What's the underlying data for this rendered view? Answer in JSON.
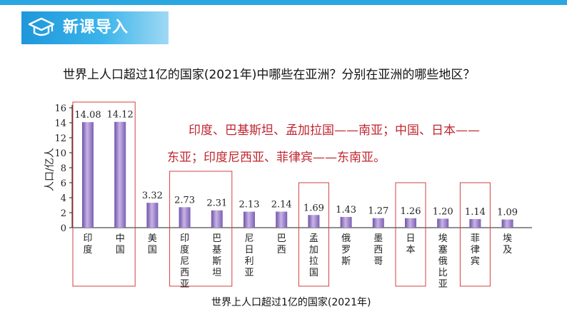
{
  "header": {
    "title": "新课导入",
    "icon": "graduation-cap-icon"
  },
  "question": "世界上人口超过1亿的国家(2021年)中哪些在亚洲？分别在亚洲的哪些地区？",
  "answer": {
    "line1": "印度、巴基斯坦、孟加拉国——南亚；中国、日本——",
    "line2": "东亚；印度尼西亚、菲律宾——东南亚。"
  },
  "colors": {
    "banner": "#1e97db",
    "bar": "#9a7cc6",
    "answer": "#c0262f",
    "box": "#d04040"
  },
  "chart_data": {
    "type": "bar",
    "title": "世界上人口超过1亿的国家(2021年)",
    "ylabel": "人口/亿人",
    "ylim": [
      0,
      16
    ],
    "yticks": [
      "0",
      "2",
      "4",
      "6",
      "8",
      "10",
      "12",
      "14",
      "16"
    ],
    "categories": [
      "印度",
      "中国",
      "美国",
      "印度尼西亚",
      "巴基斯坦",
      "尼日利亚",
      "巴西",
      "孟加拉国",
      "俄罗斯",
      "墨西哥",
      "日本",
      "埃塞俄比亚",
      "菲律宾",
      "埃及"
    ],
    "values": [
      14.08,
      14.12,
      3.32,
      2.73,
      2.31,
      2.13,
      2.14,
      1.69,
      1.43,
      1.27,
      1.26,
      1.2,
      1.14,
      1.09
    ],
    "value_labels": [
      "14.08",
      "14.12",
      "3.32",
      "2.73",
      "2.31",
      "2.13",
      "2.14",
      "1.69",
      "1.43",
      "1.27",
      "1.26",
      "1.20",
      "1.14",
      "1.09"
    ],
    "highlight_groups": [
      [
        0,
        1
      ],
      [
        3,
        4
      ],
      [
        7
      ],
      [
        10
      ],
      [
        12
      ]
    ],
    "grid": false
  }
}
